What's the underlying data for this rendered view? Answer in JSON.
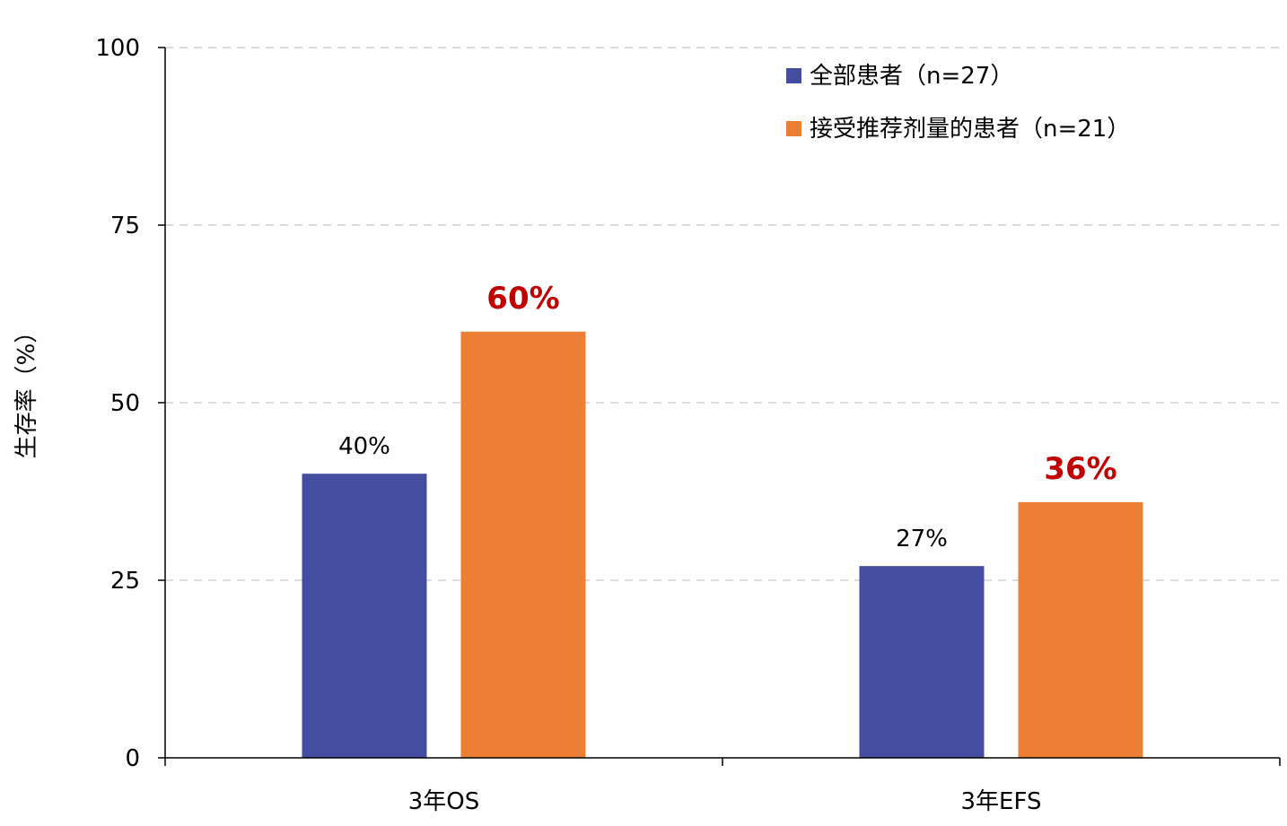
{
  "chart_data": {
    "type": "bar",
    "categories": [
      "3年OS",
      "3年EFS"
    ],
    "series": [
      {
        "name": "全部患者（n=27）",
        "values": [
          40,
          27
        ],
        "color": "#444ea0",
        "labels": [
          "40%",
          "27%"
        ],
        "label_color": "#000000",
        "label_bold": false
      },
      {
        "name": "接受推荐剂量的患者（n=21）",
        "values": [
          60,
          36
        ],
        "color": "#ec7f35",
        "labels": [
          "60%",
          "36%"
        ],
        "label_color": "#c00000",
        "label_bold": true
      }
    ],
    "ylabel": "生存率（%）",
    "xlabel": "",
    "ylim": [
      0,
      100
    ],
    "yticks": [
      0,
      25,
      50,
      75,
      100
    ],
    "grid": true,
    "legend_position": "top-right"
  }
}
